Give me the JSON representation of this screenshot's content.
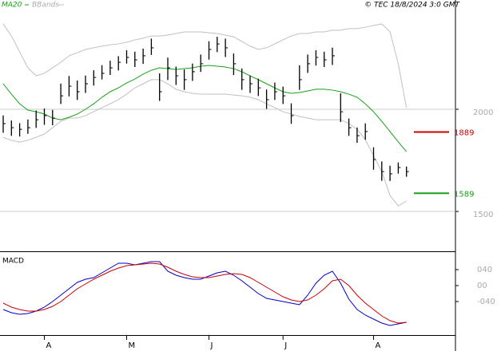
{
  "chart_data": [
    {
      "type": "ohlc",
      "title": "© TEC 18/8/2024 3:0 GMT",
      "categories": [
        null,
        null,
        null,
        null,
        null,
        "A",
        null,
        null,
        null,
        null,
        null,
        null,
        null,
        null,
        null,
        "M",
        null,
        null,
        null,
        null,
        null,
        null,
        null,
        null,
        null,
        "J",
        null,
        null,
        null,
        null,
        null,
        null,
        null,
        null,
        "J",
        null,
        null,
        null,
        null,
        null,
        null,
        null,
        null,
        null,
        null,
        "A",
        null,
        null,
        null,
        null
      ],
      "high": [
        1970,
        1945,
        1932,
        1950,
        1994,
        2004,
        1997,
        2126,
        2163,
        2141,
        2165,
        2191,
        2216,
        2238,
        2260,
        2289,
        2282,
        2297,
        2346,
        2176,
        2253,
        2209,
        2195,
        2224,
        2268,
        2333,
        2355,
        2346,
        2273,
        2200,
        2165,
        2150,
        2097,
        2131,
        2111,
        2029,
        2215,
        2268,
        2289,
        2282,
        2302,
        2078,
        1955,
        1911,
        1931,
        1814,
        1745,
        1724,
        1740,
        1720
      ],
      "low": [
        1885,
        1870,
        1867,
        1880,
        1909,
        1924,
        1922,
        2026,
        2063,
        2046,
        2080,
        2116,
        2146,
        2168,
        2190,
        2224,
        2207,
        2222,
        2266,
        2041,
        2143,
        2119,
        2095,
        2139,
        2183,
        2243,
        2280,
        2256,
        2168,
        2095,
        2080,
        2065,
        2002,
        2046,
        2026,
        1929,
        2095,
        2178,
        2214,
        2207,
        2217,
        1938,
        1870,
        1836,
        1851,
        1704,
        1650,
        1649,
        1685,
        1670
      ],
      "close": [
        1930,
        1910,
        1902,
        1910,
        1949,
        1969,
        1957,
        2066,
        2113,
        2086,
        2125,
        2156,
        2176,
        2203,
        2230,
        2254,
        2242,
        2262,
        2301,
        2086,
        2203,
        2164,
        2145,
        2184,
        2223,
        2293,
        2320,
        2301,
        2223,
        2145,
        2125,
        2105,
        2047,
        2086,
        2066,
        1969,
        2145,
        2223,
        2254,
        2242,
        2262,
        1988,
        1910,
        1871,
        1891,
        1754,
        1695,
        1684,
        1715,
        1695
      ],
      "series": [
        {
          "name": "MA20",
          "color": "#1aa01a",
          "values": [
            2125,
            2074,
            2027,
            1996,
            1988,
            1977,
            1957,
            1949,
            1961,
            1977,
            2000,
            2027,
            2059,
            2086,
            2105,
            2129,
            2148,
            2172,
            2191,
            2203,
            2199,
            2195,
            2199,
            2203,
            2211,
            2215,
            2211,
            2207,
            2199,
            2184,
            2164,
            2145,
            2125,
            2105,
            2086,
            2078,
            2082,
            2090,
            2098,
            2098,
            2094,
            2086,
            2074,
            2059,
            2027,
            1988,
            1941,
            1891,
            1840,
            1793
          ]
        },
        {
          "name": "BBands",
          "color": "#c0c0c0",
          "upper": [
            2418,
            2359,
            2281,
            2203,
            2164,
            2176,
            2203,
            2230,
            2262,
            2277,
            2293,
            2301,
            2309,
            2316,
            2320,
            2328,
            2340,
            2348,
            2359,
            2359,
            2363,
            2371,
            2379,
            2379,
            2379,
            2375,
            2371,
            2363,
            2355,
            2332,
            2309,
            2293,
            2301,
            2320,
            2340,
            2359,
            2371,
            2371,
            2379,
            2379,
            2387,
            2387,
            2395,
            2395,
            2402,
            2410,
            2418,
            2379,
            2223,
            2008
          ],
          "lower": [
            1863,
            1848,
            1840,
            1848,
            1863,
            1879,
            1910,
            1941,
            1957,
            1957,
            1969,
            1988,
            2008,
            2027,
            2047,
            2074,
            2105,
            2125,
            2145,
            2145,
            2125,
            2098,
            2086,
            2078,
            2074,
            2074,
            2074,
            2074,
            2070,
            2066,
            2059,
            2047,
            2027,
            2008,
            1988,
            1977,
            1965,
            1957,
            1949,
            1949,
            1949,
            1949,
            1930,
            1902,
            1852,
            1773,
            1695,
            1578,
            1527,
            1551
          ]
        }
      ],
      "levels": [
        {
          "value": 1889,
          "color": "#cc0000"
        },
        {
          "value": 1589,
          "color": "#1aa01a"
        }
      ],
      "ylim": [
        1305,
        2535
      ],
      "yticks": [
        1500,
        2000
      ],
      "grid": true
    },
    {
      "type": "line",
      "title": "MACD",
      "series": [
        {
          "color": "#0000cc",
          "values": [
            -60,
            -68,
            -72,
            -70,
            -64,
            -54,
            -40,
            -24,
            -8,
            8,
            16,
            20,
            32,
            44,
            56,
            56,
            52,
            56,
            60,
            60,
            36,
            26,
            20,
            16,
            16,
            24,
            32,
            36,
            26,
            12,
            -4,
            -20,
            -32,
            -36,
            -40,
            -44,
            -48,
            -24,
            6,
            26,
            36,
            6,
            -34,
            -60,
            -74,
            -84,
            -94,
            -100,
            -96,
            -92
          ]
        },
        {
          "color": "#cc0000",
          "values": [
            -44,
            -54,
            -60,
            -64,
            -64,
            -60,
            -52,
            -40,
            -24,
            -8,
            4,
            16,
            26,
            36,
            44,
            50,
            52,
            54,
            56,
            54,
            46,
            36,
            28,
            22,
            20,
            20,
            24,
            28,
            30,
            28,
            20,
            8,
            -4,
            -16,
            -28,
            -36,
            -40,
            -36,
            -24,
            -8,
            12,
            16,
            0,
            -24,
            -44,
            -60,
            -76,
            -88,
            -94,
            -92
          ]
        }
      ],
      "ylim": [
        -124,
        80
      ],
      "yticks": [
        {
          "value": 40,
          "label": "040"
        },
        {
          "value": 0,
          "label": "00"
        },
        {
          "value": -40,
          "label": "-040"
        }
      ]
    }
  ]
}
